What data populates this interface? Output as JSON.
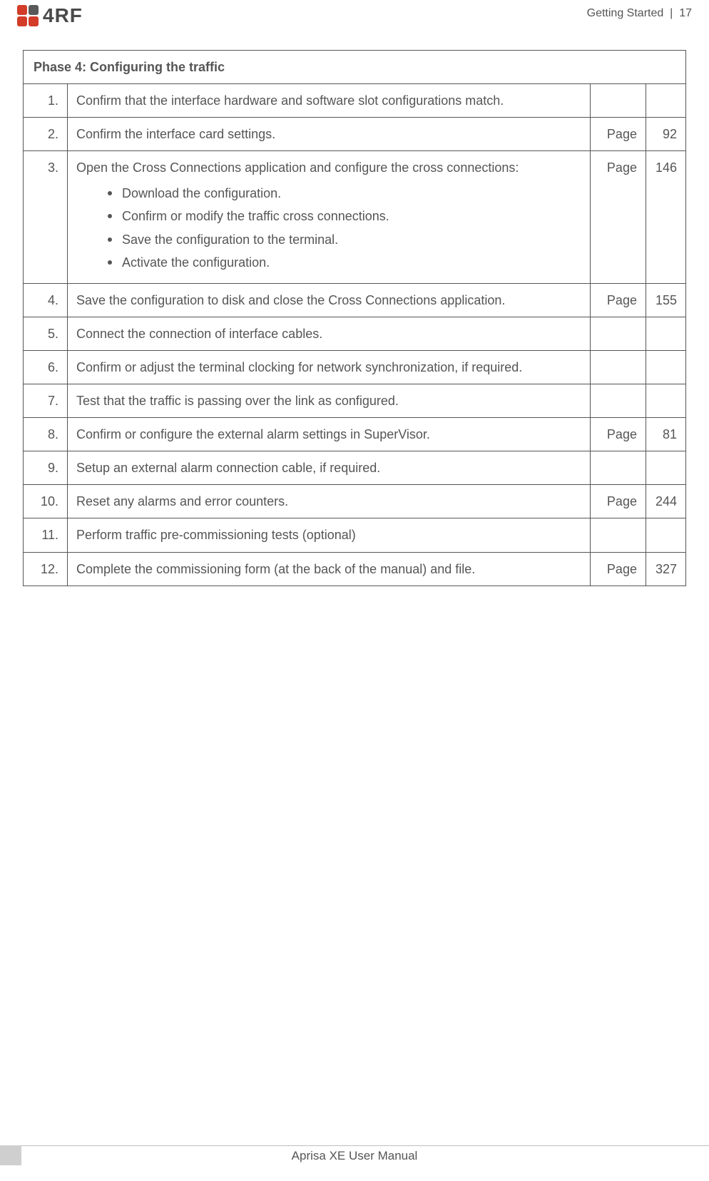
{
  "brand": {
    "name": "4RF"
  },
  "header": {
    "section": "Getting Started",
    "sep": "|",
    "page": "17"
  },
  "table": {
    "title": "Phase 4: Configuring the traffic",
    "page_label": "Page",
    "rows": [
      {
        "n": "1.",
        "text": "Confirm that the interface hardware and software slot configurations match.",
        "page": ""
      },
      {
        "n": "2.",
        "text": "Confirm the interface card settings.",
        "page": "92"
      },
      {
        "n": "3.",
        "text": "Open the Cross Connections application and configure the cross connections:",
        "page": "146",
        "sub": [
          "Download the configuration.",
          "Confirm or modify the traffic cross connections.",
          "Save the configuration to the terminal.",
          "Activate the configuration."
        ]
      },
      {
        "n": "4.",
        "text": "Save the configuration to disk and close the Cross Connections application.",
        "page": "155"
      },
      {
        "n": "5.",
        "text": "Connect the connection of interface cables.",
        "page": ""
      },
      {
        "n": "6.",
        "text": "Confirm or adjust the terminal clocking for network synchronization, if required.",
        "page": ""
      },
      {
        "n": "7.",
        "text": "Test that the traffic is passing over the link as configured.",
        "page": ""
      },
      {
        "n": "8.",
        "text": "Confirm or configure the external alarm settings in SuperVisor.",
        "page": "81"
      },
      {
        "n": "9.",
        "text": "Setup an external alarm connection cable, if required.",
        "page": ""
      },
      {
        "n": "10.",
        "text": "Reset any alarms and error counters.",
        "page": "244"
      },
      {
        "n": "11.",
        "text": "Perform traffic pre-commissioning tests (optional)",
        "page": ""
      },
      {
        "n": "12.",
        "text": "Complete the commissioning form (at the back of the manual) and file.",
        "page": "327"
      }
    ]
  },
  "footer": {
    "text": "Aprisa XE User Manual"
  },
  "colors": {
    "text": "#555555",
    "border": "#555555",
    "logo_red": "#d23c28",
    "logo_gray": "#595959",
    "footer_bar": "#cfcfcf",
    "footer_line": "#bfbfbf",
    "bg": "#ffffff"
  }
}
